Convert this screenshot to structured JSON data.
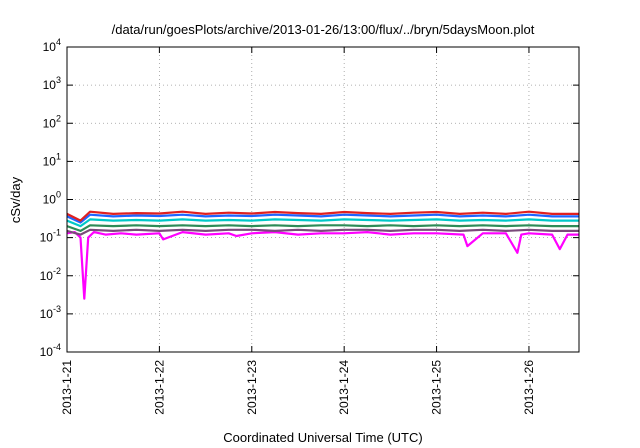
{
  "chart_data": {
    "type": "line",
    "title": "/data/run/goesPlots/archive/2013-01-26/13:00/flux/../bryn/5daysMoon.plot",
    "xlabel": "Coordinated Universal Time (UTC)",
    "ylabel": "cSv/day",
    "yscale": "log",
    "ylim": [
      0.0001,
      10000
    ],
    "xlim": [
      "2013-01-21T00:00",
      "2013-01-26T13:00"
    ],
    "yticks": [
      {
        "value": 10000,
        "base": "10",
        "exp": "4"
      },
      {
        "value": 1000,
        "base": "10",
        "exp": "3"
      },
      {
        "value": 100,
        "base": "10",
        "exp": "2"
      },
      {
        "value": 10,
        "base": "10",
        "exp": "1"
      },
      {
        "value": 1,
        "base": "10",
        "exp": "0"
      },
      {
        "value": 0.1,
        "base": "10",
        "exp": "-1"
      },
      {
        "value": 0.01,
        "base": "10",
        "exp": "-2"
      },
      {
        "value": 0.001,
        "base": "10",
        "exp": "-3"
      },
      {
        "value": 0.0001,
        "base": "10",
        "exp": "-4"
      }
    ],
    "xticks": [
      {
        "value": "2013-01-21T00:00",
        "label": "2013-1-21"
      },
      {
        "value": "2013-01-22T00:00",
        "label": "2013-1-22"
      },
      {
        "value": "2013-01-23T00:00",
        "label": "2013-1-23"
      },
      {
        "value": "2013-01-24T00:00",
        "label": "2013-1-24"
      },
      {
        "value": "2013-01-25T00:00",
        "label": "2013-1-25"
      },
      {
        "value": "2013-01-26T00:00",
        "label": "2013-1-26"
      }
    ],
    "grid": true,
    "legend": "none",
    "series": [
      {
        "color": "#ff00ff",
        "x": [
          "2013-01-21T00:00",
          "2013-01-21T02:00",
          "2013-01-21T03:30",
          "2013-01-21T04:30",
          "2013-01-21T05:30",
          "2013-01-21T07:00",
          "2013-01-21T10:00",
          "2013-01-21T14:00",
          "2013-01-21T18:00",
          "2013-01-22T00:00",
          "2013-01-22T01:00",
          "2013-01-22T06:00",
          "2013-01-22T12:00",
          "2013-01-22T18:00",
          "2013-01-22T20:00",
          "2013-01-23T00:00",
          "2013-01-23T06:00",
          "2013-01-23T12:00",
          "2013-01-23T18:00",
          "2013-01-24T00:00",
          "2013-01-24T06:00",
          "2013-01-24T12:00",
          "2013-01-24T18:00",
          "2013-01-25T00:00",
          "2013-01-25T07:00",
          "2013-01-25T08:00",
          "2013-01-25T12:00",
          "2013-01-25T18:00",
          "2013-01-25T21:00",
          "2013-01-25T22:00",
          "2013-01-26T00:00",
          "2013-01-26T06:00",
          "2013-01-26T08:00",
          "2013-01-26T10:00",
          "2013-01-26T13:00"
        ],
        "y": [
          0.13,
          0.14,
          0.1,
          0.0025,
          0.1,
          0.14,
          0.12,
          0.13,
          0.12,
          0.13,
          0.09,
          0.14,
          0.12,
          0.13,
          0.11,
          0.13,
          0.14,
          0.12,
          0.13,
          0.13,
          0.14,
          0.12,
          0.13,
          0.13,
          0.12,
          0.06,
          0.13,
          0.13,
          0.04,
          0.12,
          0.13,
          0.12,
          0.05,
          0.12,
          0.12
        ]
      },
      {
        "color": "#7a4a7a",
        "x": [
          "2013-01-21T00:00",
          "2013-01-21T03:30",
          "2013-01-21T06:00",
          "2013-01-21T12:00",
          "2013-01-21T18:00",
          "2013-01-22T00:00",
          "2013-01-22T06:00",
          "2013-01-22T12:00",
          "2013-01-22T18:00",
          "2013-01-23T00:00",
          "2013-01-23T06:00",
          "2013-01-23T12:00",
          "2013-01-23T18:00",
          "2013-01-24T00:00",
          "2013-01-24T06:00",
          "2013-01-24T12:00",
          "2013-01-24T18:00",
          "2013-01-25T00:00",
          "2013-01-25T06:00",
          "2013-01-25T12:00",
          "2013-01-25T18:00",
          "2013-01-26T00:00",
          "2013-01-26T06:00",
          "2013-01-26T13:00"
        ],
        "y": [
          0.15,
          0.12,
          0.16,
          0.15,
          0.16,
          0.15,
          0.16,
          0.15,
          0.16,
          0.16,
          0.15,
          0.16,
          0.15,
          0.16,
          0.16,
          0.15,
          0.16,
          0.16,
          0.15,
          0.16,
          0.15,
          0.16,
          0.15,
          0.15
        ]
      },
      {
        "color": "#2e8b57",
        "x": [
          "2013-01-21T00:00",
          "2013-01-21T03:30",
          "2013-01-21T06:00",
          "2013-01-21T12:00",
          "2013-01-21T18:00",
          "2013-01-22T00:00",
          "2013-01-22T06:00",
          "2013-01-22T12:00",
          "2013-01-22T18:00",
          "2013-01-23T00:00",
          "2013-01-23T06:00",
          "2013-01-23T12:00",
          "2013-01-23T18:00",
          "2013-01-24T00:00",
          "2013-01-24T06:00",
          "2013-01-24T12:00",
          "2013-01-24T18:00",
          "2013-01-25T00:00",
          "2013-01-25T06:00",
          "2013-01-25T12:00",
          "2013-01-25T18:00",
          "2013-01-26T00:00",
          "2013-01-26T06:00",
          "2013-01-26T13:00"
        ],
        "y": [
          0.2,
          0.15,
          0.21,
          0.2,
          0.21,
          0.2,
          0.21,
          0.2,
          0.21,
          0.2,
          0.21,
          0.2,
          0.21,
          0.21,
          0.2,
          0.21,
          0.2,
          0.21,
          0.2,
          0.21,
          0.2,
          0.21,
          0.2,
          0.2
        ]
      },
      {
        "color": "#00c8c8",
        "x": [
          "2013-01-21T00:00",
          "2013-01-21T03:30",
          "2013-01-21T06:00",
          "2013-01-21T12:00",
          "2013-01-21T18:00",
          "2013-01-22T00:00",
          "2013-01-22T06:00",
          "2013-01-22T12:00",
          "2013-01-22T18:00",
          "2013-01-23T00:00",
          "2013-01-23T06:00",
          "2013-01-23T12:00",
          "2013-01-23T18:00",
          "2013-01-24T00:00",
          "2013-01-24T06:00",
          "2013-01-24T12:00",
          "2013-01-24T18:00",
          "2013-01-25T00:00",
          "2013-01-25T06:00",
          "2013-01-25T12:00",
          "2013-01-25T18:00",
          "2013-01-26T00:00",
          "2013-01-26T06:00",
          "2013-01-26T13:00"
        ],
        "y": [
          0.28,
          0.2,
          0.3,
          0.28,
          0.29,
          0.28,
          0.3,
          0.28,
          0.29,
          0.28,
          0.3,
          0.29,
          0.28,
          0.3,
          0.29,
          0.28,
          0.29,
          0.3,
          0.28,
          0.29,
          0.28,
          0.3,
          0.28,
          0.28
        ]
      },
      {
        "color": "#1e64ff",
        "x": [
          "2013-01-21T00:00",
          "2013-01-21T03:30",
          "2013-01-21T06:00",
          "2013-01-21T12:00",
          "2013-01-21T18:00",
          "2013-01-22T00:00",
          "2013-01-22T06:00",
          "2013-01-22T12:00",
          "2013-01-22T18:00",
          "2013-01-23T00:00",
          "2013-01-23T06:00",
          "2013-01-23T12:00",
          "2013-01-23T18:00",
          "2013-01-24T00:00",
          "2013-01-24T06:00",
          "2013-01-24T12:00",
          "2013-01-24T18:00",
          "2013-01-25T00:00",
          "2013-01-25T06:00",
          "2013-01-25T12:00",
          "2013-01-25T18:00",
          "2013-01-26T00:00",
          "2013-01-26T06:00",
          "2013-01-26T13:00"
        ],
        "y": [
          0.36,
          0.25,
          0.4,
          0.36,
          0.38,
          0.37,
          0.4,
          0.36,
          0.38,
          0.37,
          0.4,
          0.38,
          0.36,
          0.4,
          0.38,
          0.36,
          0.38,
          0.4,
          0.36,
          0.38,
          0.36,
          0.4,
          0.36,
          0.36
        ]
      },
      {
        "color": "#e02020",
        "x": [
          "2013-01-21T00:00",
          "2013-01-21T03:30",
          "2013-01-21T06:00",
          "2013-01-21T12:00",
          "2013-01-21T18:00",
          "2013-01-22T00:00",
          "2013-01-22T06:00",
          "2013-01-22T12:00",
          "2013-01-22T18:00",
          "2013-01-23T00:00",
          "2013-01-23T06:00",
          "2013-01-23T12:00",
          "2013-01-23T18:00",
          "2013-01-24T00:00",
          "2013-01-24T06:00",
          "2013-01-24T12:00",
          "2013-01-24T18:00",
          "2013-01-25T00:00",
          "2013-01-25T06:00",
          "2013-01-25T12:00",
          "2013-01-25T18:00",
          "2013-01-26T00:00",
          "2013-01-26T06:00",
          "2013-01-26T13:00"
        ],
        "y": [
          0.42,
          0.28,
          0.48,
          0.42,
          0.44,
          0.43,
          0.48,
          0.42,
          0.45,
          0.43,
          0.47,
          0.44,
          0.42,
          0.47,
          0.44,
          0.42,
          0.45,
          0.47,
          0.42,
          0.45,
          0.42,
          0.48,
          0.42,
          0.42
        ]
      }
    ]
  }
}
